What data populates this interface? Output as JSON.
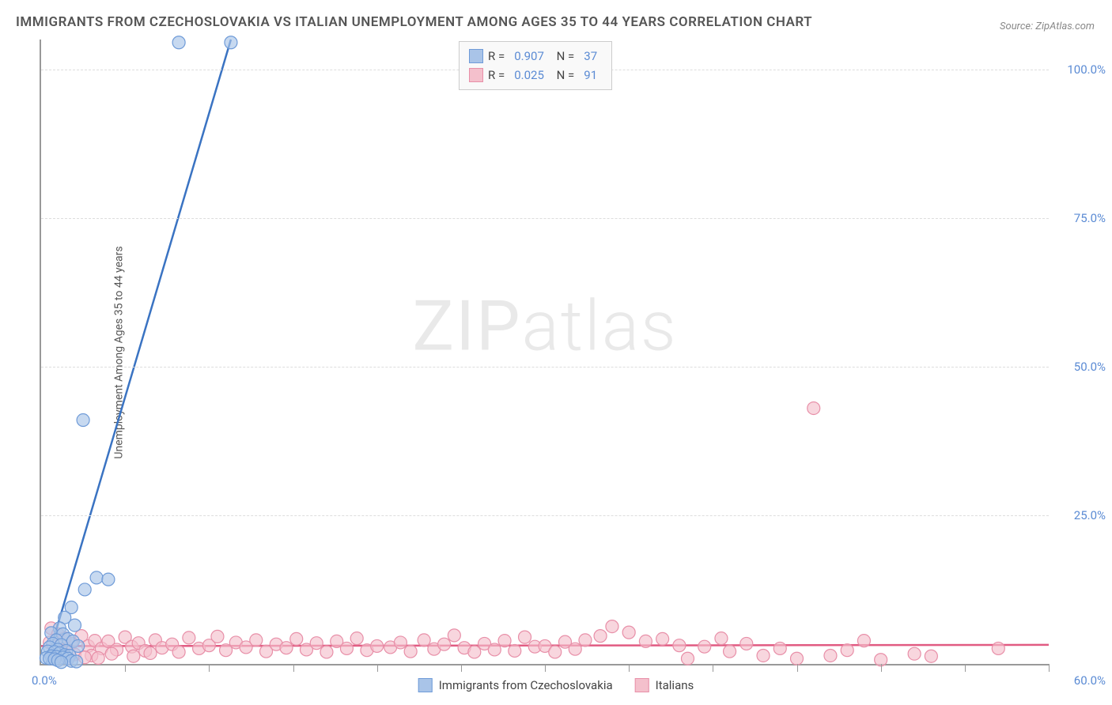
{
  "title": "IMMIGRANTS FROM CZECHOSLOVAKIA VS ITALIAN UNEMPLOYMENT AMONG AGES 35 TO 44 YEARS CORRELATION CHART",
  "source": "Source: ZipAtlas.com",
  "watermark": "ZIPatlas",
  "y_axis_label": "Unemployment Among Ages 35 to 44 years",
  "chart": {
    "type": "scatter",
    "xlim": [
      0,
      60
    ],
    "ylim": [
      0,
      105
    ],
    "x_origin_label": "0.0%",
    "x_max_label": "60.0%",
    "x_tick_step": 5,
    "y_ticks": [
      {
        "v": 25,
        "label": "25.0%"
      },
      {
        "v": 50,
        "label": "50.0%"
      },
      {
        "v": 75,
        "label": "75.0%"
      },
      {
        "v": 100,
        "label": "100.0%"
      }
    ],
    "grid_color": "#dddddd",
    "axis_color": "#999999",
    "background_color": "#ffffff",
    "series": [
      {
        "name": "Immigrants from Czechoslovakia",
        "marker_color": "#a9c4e8",
        "marker_stroke": "#6f9bd8",
        "line_color": "#3a73c2",
        "marker_radius": 8,
        "R": "0.907",
        "N": "37",
        "trend": {
          "x1": 0.3,
          "y1": 0,
          "x2": 11.3,
          "y2": 105
        },
        "points": [
          [
            8.2,
            104.5
          ],
          [
            11.3,
            104.5
          ],
          [
            2.5,
            41
          ],
          [
            3.3,
            14.5
          ],
          [
            4.0,
            14.2
          ],
          [
            2.6,
            12.5
          ],
          [
            1.8,
            9.5
          ],
          [
            1.4,
            7.8
          ],
          [
            2.0,
            6.5
          ],
          [
            1.1,
            6.0
          ],
          [
            0.6,
            5.2
          ],
          [
            1.3,
            5.0
          ],
          [
            1.6,
            4.2
          ],
          [
            0.9,
            4.0
          ],
          [
            1.9,
            3.8
          ],
          [
            0.7,
            3.4
          ],
          [
            1.2,
            3.2
          ],
          [
            2.2,
            3.0
          ],
          [
            0.5,
            2.8
          ],
          [
            1.0,
            2.4
          ],
          [
            1.5,
            2.2
          ],
          [
            0.4,
            2.1
          ],
          [
            0.8,
            2.0
          ],
          [
            1.1,
            1.8
          ],
          [
            1.4,
            1.5
          ],
          [
            1.7,
            1.4
          ],
          [
            0.6,
            1.3
          ],
          [
            0.9,
            1.2
          ],
          [
            1.3,
            1.1
          ],
          [
            0.3,
            1.0
          ],
          [
            0.5,
            0.9
          ],
          [
            1.6,
            0.9
          ],
          [
            0.8,
            0.8
          ],
          [
            1.0,
            0.6
          ],
          [
            1.8,
            0.5
          ],
          [
            2.1,
            0.4
          ],
          [
            1.2,
            0.3
          ]
        ]
      },
      {
        "name": "Italians",
        "marker_color": "#f4c0cc",
        "marker_stroke": "#e88fa8",
        "line_color": "#e15b82",
        "marker_radius": 8,
        "R": "0.025",
        "N": "91",
        "trend": {
          "x1": 0,
          "y1": 3.0,
          "x2": 60,
          "y2": 3.2
        },
        "points": [
          [
            46,
            43
          ],
          [
            34,
            6.3
          ],
          [
            35,
            5.3
          ],
          [
            33.3,
            4.7
          ],
          [
            36,
            3.8
          ],
          [
            37,
            4.2
          ],
          [
            38,
            3.1
          ],
          [
            38.5,
            0.9
          ],
          [
            39.5,
            2.9
          ],
          [
            40.5,
            4.3
          ],
          [
            41,
            2.1
          ],
          [
            42,
            3.4
          ],
          [
            43,
            1.4
          ],
          [
            44,
            2.6
          ],
          [
            45,
            0.9
          ],
          [
            47,
            1.4
          ],
          [
            48,
            2.3
          ],
          [
            49,
            3.9
          ],
          [
            50,
            0.7
          ],
          [
            52,
            1.7
          ],
          [
            53,
            1.3
          ],
          [
            57,
            2.6
          ],
          [
            0.6,
            6.0
          ],
          [
            1.0,
            5.0
          ],
          [
            1.4,
            4.3
          ],
          [
            0.5,
            3.6
          ],
          [
            1.8,
            3.4
          ],
          [
            2.4,
            4.7
          ],
          [
            2.8,
            3.0
          ],
          [
            3.2,
            3.9
          ],
          [
            3.6,
            2.6
          ],
          [
            4.0,
            3.8
          ],
          [
            4.5,
            2.4
          ],
          [
            5.0,
            4.5
          ],
          [
            5.4,
            2.9
          ],
          [
            5.8,
            3.5
          ],
          [
            6.2,
            2.2
          ],
          [
            6.8,
            4.0
          ],
          [
            7.2,
            2.7
          ],
          [
            7.8,
            3.3
          ],
          [
            8.2,
            2.0
          ],
          [
            8.8,
            4.4
          ],
          [
            9.4,
            2.6
          ],
          [
            10.0,
            3.1
          ],
          [
            10.5,
            4.6
          ],
          [
            11.0,
            2.3
          ],
          [
            11.6,
            3.6
          ],
          [
            12.2,
            2.8
          ],
          [
            12.8,
            4.0
          ],
          [
            13.4,
            2.1
          ],
          [
            14.0,
            3.3
          ],
          [
            14.6,
            2.7
          ],
          [
            15.2,
            4.2
          ],
          [
            15.8,
            2.4
          ],
          [
            16.4,
            3.5
          ],
          [
            17.0,
            2.0
          ],
          [
            17.6,
            3.8
          ],
          [
            18.2,
            2.6
          ],
          [
            18.8,
            4.3
          ],
          [
            19.4,
            2.3
          ],
          [
            20.0,
            3.0
          ],
          [
            20.8,
            2.8
          ],
          [
            21.4,
            3.6
          ],
          [
            22.0,
            2.1
          ],
          [
            22.8,
            4.0
          ],
          [
            23.4,
            2.5
          ],
          [
            24.0,
            3.3
          ],
          [
            24.6,
            4.8
          ],
          [
            25.2,
            2.7
          ],
          [
            25.8,
            2.0
          ],
          [
            26.4,
            3.4
          ],
          [
            27.0,
            2.4
          ],
          [
            27.6,
            3.9
          ],
          [
            28.2,
            2.2
          ],
          [
            28.8,
            4.5
          ],
          [
            29.4,
            2.9
          ],
          [
            30.0,
            3.0
          ],
          [
            30.6,
            2.0
          ],
          [
            31.2,
            3.7
          ],
          [
            31.8,
            2.5
          ],
          [
            32.4,
            4.0
          ],
          [
            1.2,
            2.0
          ],
          [
            2.0,
            1.6
          ],
          [
            3.0,
            1.4
          ],
          [
            4.2,
            1.7
          ],
          [
            5.5,
            1.3
          ],
          [
            6.5,
            1.8
          ],
          [
            0.8,
            1.2
          ],
          [
            1.6,
            0.9
          ],
          [
            2.6,
            1.1
          ],
          [
            3.4,
            1.0
          ]
        ]
      }
    ]
  },
  "colors": {
    "tick_label": "#5b8bd4",
    "title_text": "#555555",
    "source_text": "#888888"
  }
}
